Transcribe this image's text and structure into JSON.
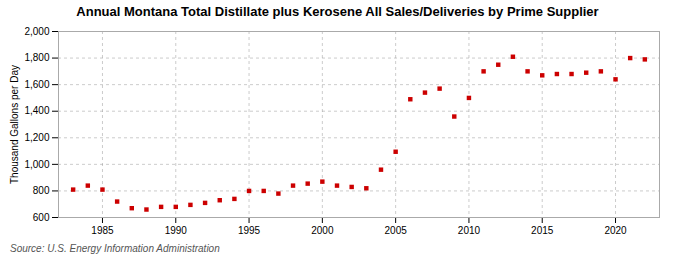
{
  "chart_data": {
    "type": "scatter",
    "title": "Annual Montana Total Distillate plus Kerosene All Sales/Deliveries by Prime Supplier",
    "ylabel": "Thousand Gallons per Day",
    "source": "Source: U.S. Energy Information Administration",
    "x": [
      1983,
      1984,
      1985,
      1986,
      1987,
      1988,
      1989,
      1990,
      1991,
      1992,
      1993,
      1994,
      1995,
      1996,
      1997,
      1998,
      1999,
      2000,
      2001,
      2002,
      2003,
      2004,
      2005,
      2006,
      2007,
      2008,
      2009,
      2010,
      2011,
      2012,
      2013,
      2014,
      2015,
      2016,
      2017,
      2018,
      2019,
      2020,
      2021,
      2022
    ],
    "values": [
      810,
      840,
      810,
      720,
      670,
      660,
      680,
      680,
      695,
      710,
      730,
      740,
      800,
      800,
      780,
      840,
      855,
      870,
      840,
      830,
      820,
      960,
      1095,
      1490,
      1540,
      1570,
      1360,
      1500,
      1700,
      1750,
      1810,
      1700,
      1670,
      1680,
      1680,
      1690,
      1700,
      1640,
      1800,
      1790
    ],
    "color": "#cc0000",
    "marker": "square",
    "xlim": [
      1982,
      2023
    ],
    "xticks": [
      1985,
      1990,
      1995,
      2000,
      2005,
      2010,
      2015,
      2020
    ],
    "ylim": [
      600,
      2000
    ],
    "yticks": [
      600,
      800,
      {
        "value": 1000,
        "label": "1,000"
      },
      {
        "value": 1200,
        "label": "1,200"
      },
      {
        "value": 1400,
        "label": "1,400"
      },
      {
        "value": 1600,
        "label": "1,600"
      },
      {
        "value": 1800,
        "label": "1,800"
      },
      {
        "value": 2000,
        "label": "2,000"
      }
    ],
    "grid": true
  }
}
